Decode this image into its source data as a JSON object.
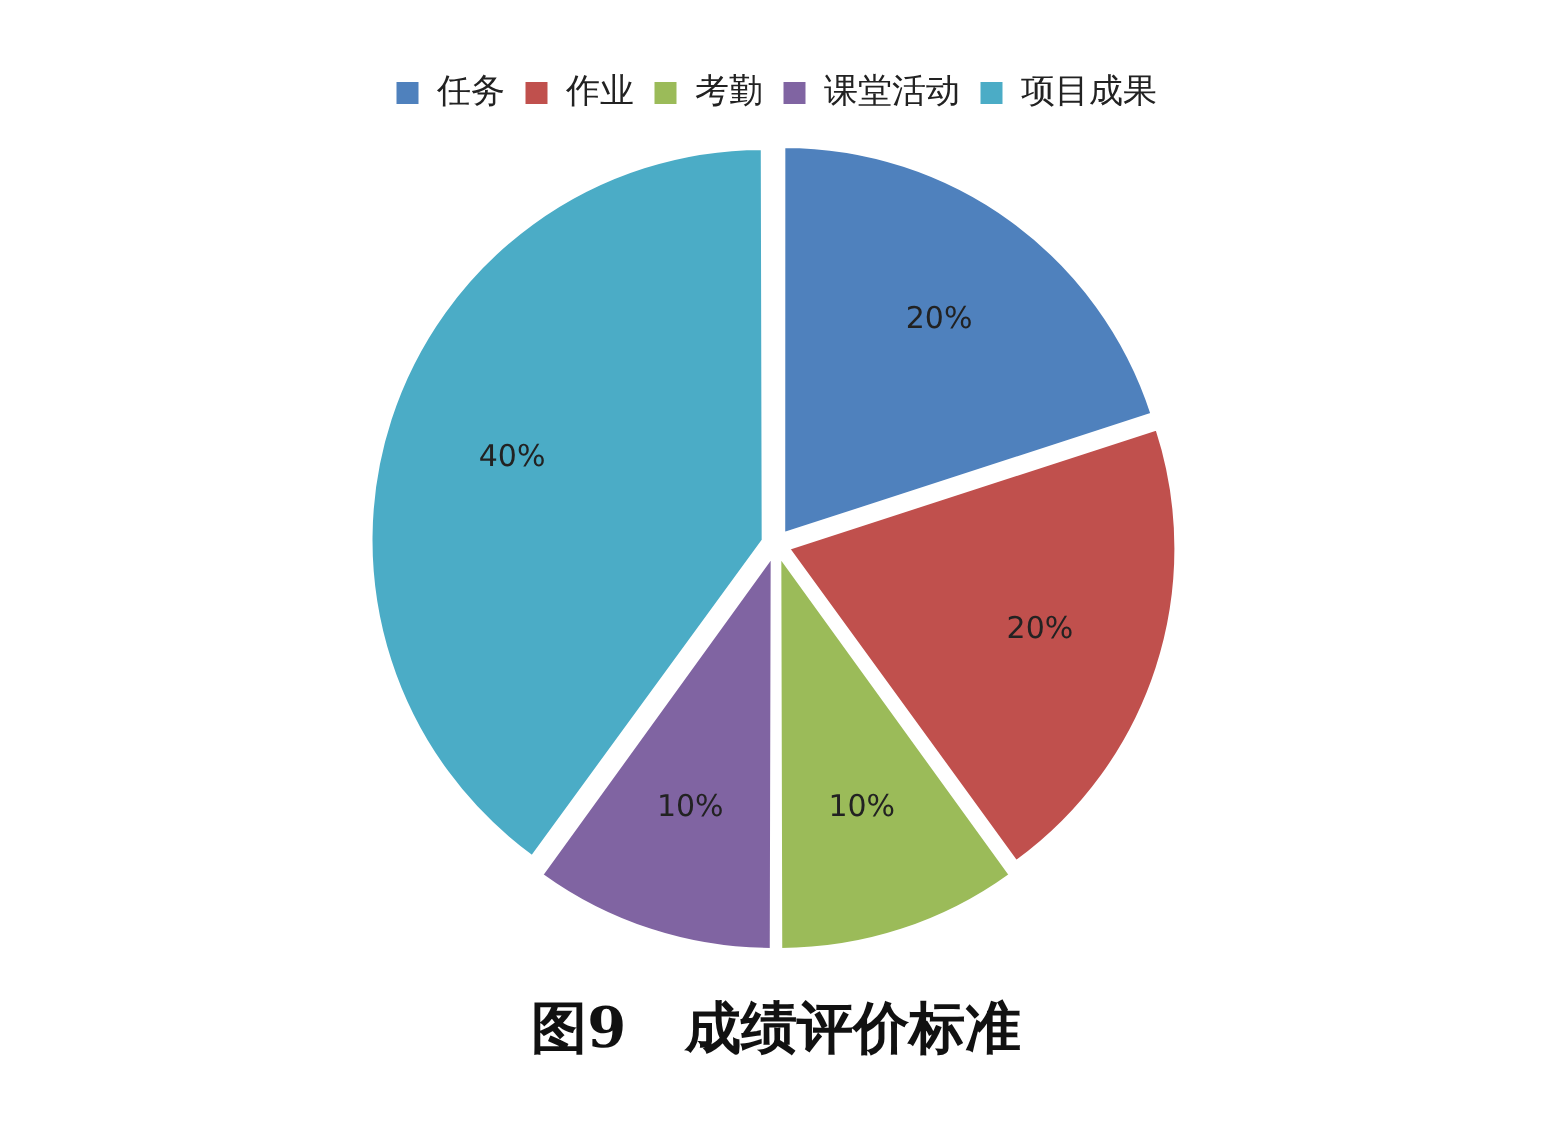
{
  "chart_data": {
    "type": "pie",
    "title": "图9   成绩评价标准",
    "categories": [
      "任务",
      "作业",
      "考勤",
      "课堂活动",
      "项目成果"
    ],
    "values": [
      20,
      20,
      10,
      10,
      40
    ],
    "colors": [
      "#4f81bd",
      "#c0504d",
      "#9bbb59",
      "#8064a2",
      "#4bacc6"
    ],
    "value_labels": [
      "20%",
      "20%",
      "10%",
      "10%",
      "40%"
    ],
    "legend": "top"
  }
}
